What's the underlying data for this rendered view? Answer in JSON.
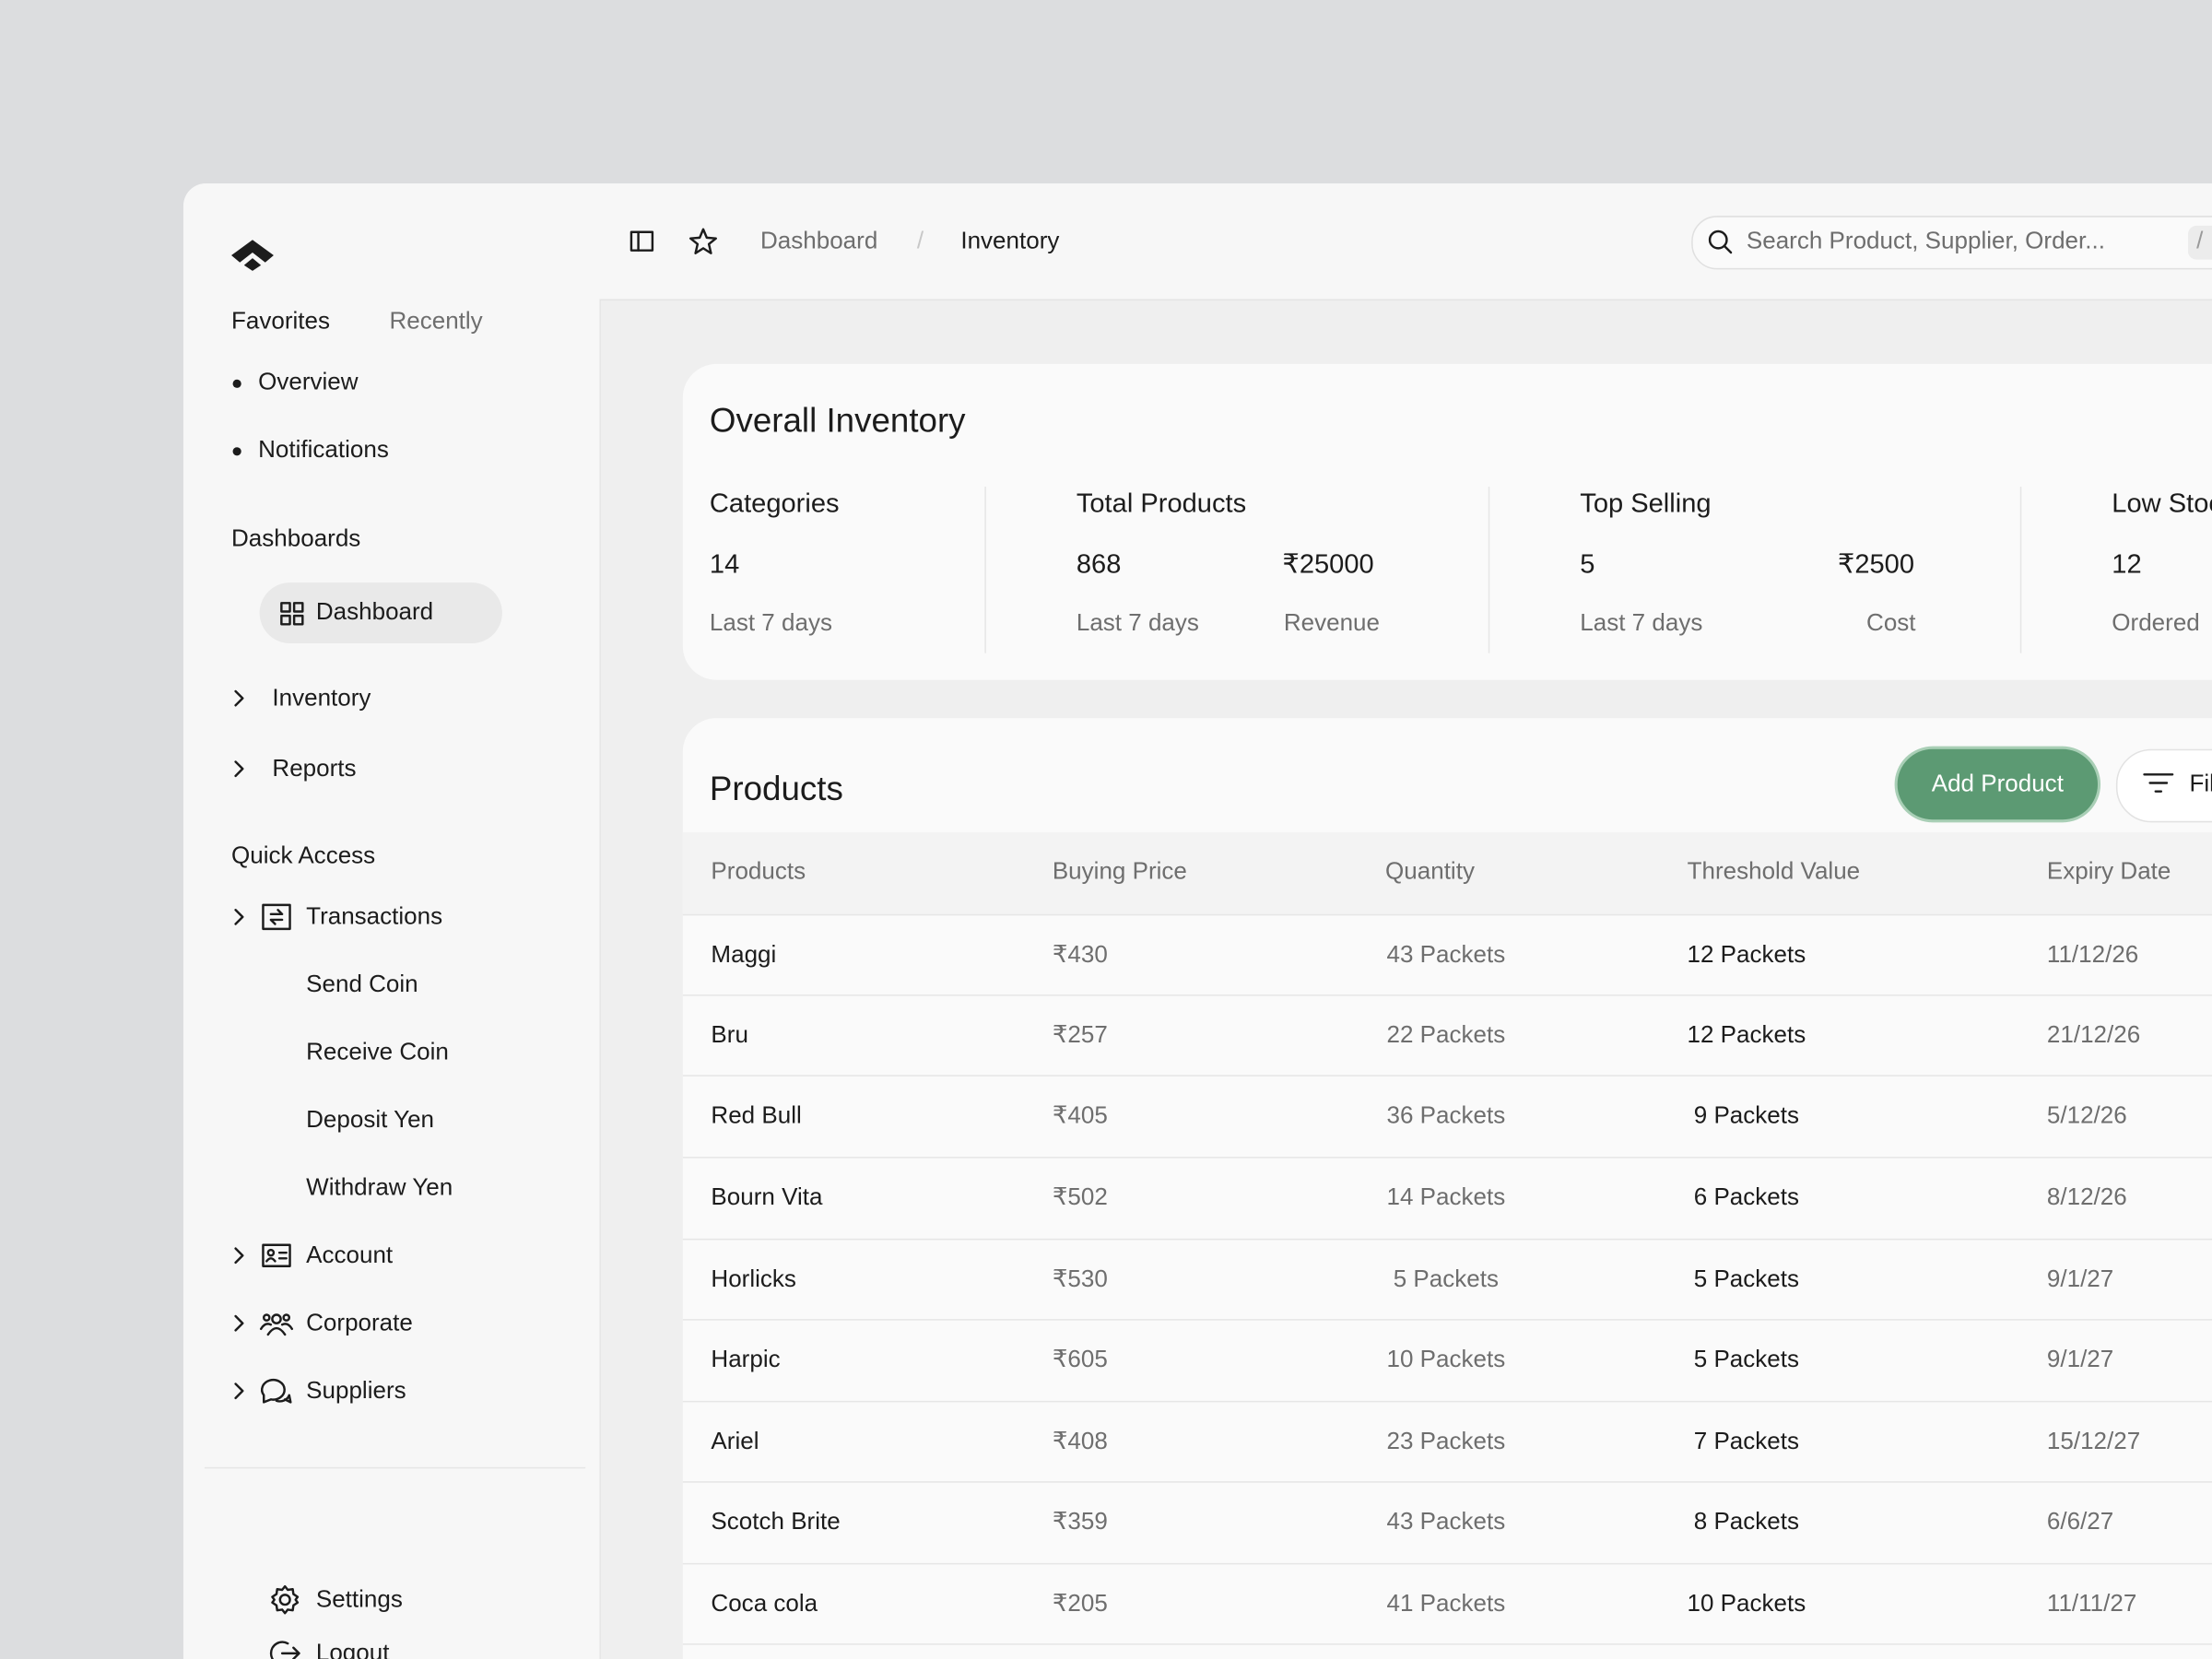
{
  "sidebar": {
    "tabs": [
      "Favorites",
      "Recently"
    ],
    "favorites": [
      "Overview",
      "Notifications"
    ],
    "dashboards_heading": "Dashboards",
    "dashboard_item": "Dashboard",
    "nav": [
      "Inventory",
      "Reports"
    ],
    "quick_access_heading": "Quick Access",
    "transactions": "Transactions",
    "transaction_items": [
      "Send Coin",
      "Receive Coin",
      "Deposit Yen",
      "Withdraw Yen"
    ],
    "more": [
      "Account",
      "Corporate",
      "Suppliers"
    ],
    "footer": [
      "Settings",
      "Logout"
    ]
  },
  "topbar": {
    "breadcrumb": [
      "Dashboard",
      "Inventory"
    ],
    "separator": "/",
    "search_placeholder": "Search Product, Supplier, Order...",
    "shortcut": "/"
  },
  "overview": {
    "title": "Overall Inventory",
    "cards": [
      {
        "title": "Categories",
        "stats": [
          {
            "value": "14",
            "label": "Last 7 days"
          }
        ]
      },
      {
        "title": "Total Products",
        "stats": [
          {
            "value": "868",
            "label": "Last 7 days"
          },
          {
            "value": "₹25000",
            "label": "Revenue"
          }
        ]
      },
      {
        "title": "Top Selling",
        "stats": [
          {
            "value": "5",
            "label": "Last 7 days"
          },
          {
            "value": "₹2500",
            "label": "Cost"
          }
        ]
      },
      {
        "title": "Low Stock",
        "stats": [
          {
            "value": "12",
            "label": "Ordered"
          }
        ]
      }
    ]
  },
  "products": {
    "title": "Products",
    "add_button": "Add Product",
    "filter_button": "Filters",
    "columns": [
      "Products",
      "Buying Price",
      "Quantity",
      "Threshold Value",
      "Expiry Date"
    ],
    "rows": [
      [
        "Maggi",
        "₹430",
        "43 Packets",
        "12 Packets",
        "11/12/26"
      ],
      [
        "Bru",
        "₹257",
        "22 Packets",
        "12 Packets",
        "21/12/26"
      ],
      [
        "Red Bull",
        "₹405",
        "36 Packets",
        "9 Packets",
        "5/12/26"
      ],
      [
        "Bourn Vita",
        "₹502",
        "14 Packets",
        "6 Packets",
        "8/12/26"
      ],
      [
        "Horlicks",
        "₹530",
        "5 Packets",
        "5 Packets",
        "9/1/27"
      ],
      [
        "Harpic",
        "₹605",
        "10 Packets",
        "5 Packets",
        "9/1/27"
      ],
      [
        "Ariel",
        "₹408",
        "23 Packets",
        "7 Packets",
        "15/12/27"
      ],
      [
        "Scotch Brite",
        "₹359",
        "43 Packets",
        "8 Packets",
        "6/6/27"
      ],
      [
        "Coca cola",
        "₹205",
        "41 Packets",
        "10 Packets",
        "11/11/27"
      ]
    ]
  }
}
